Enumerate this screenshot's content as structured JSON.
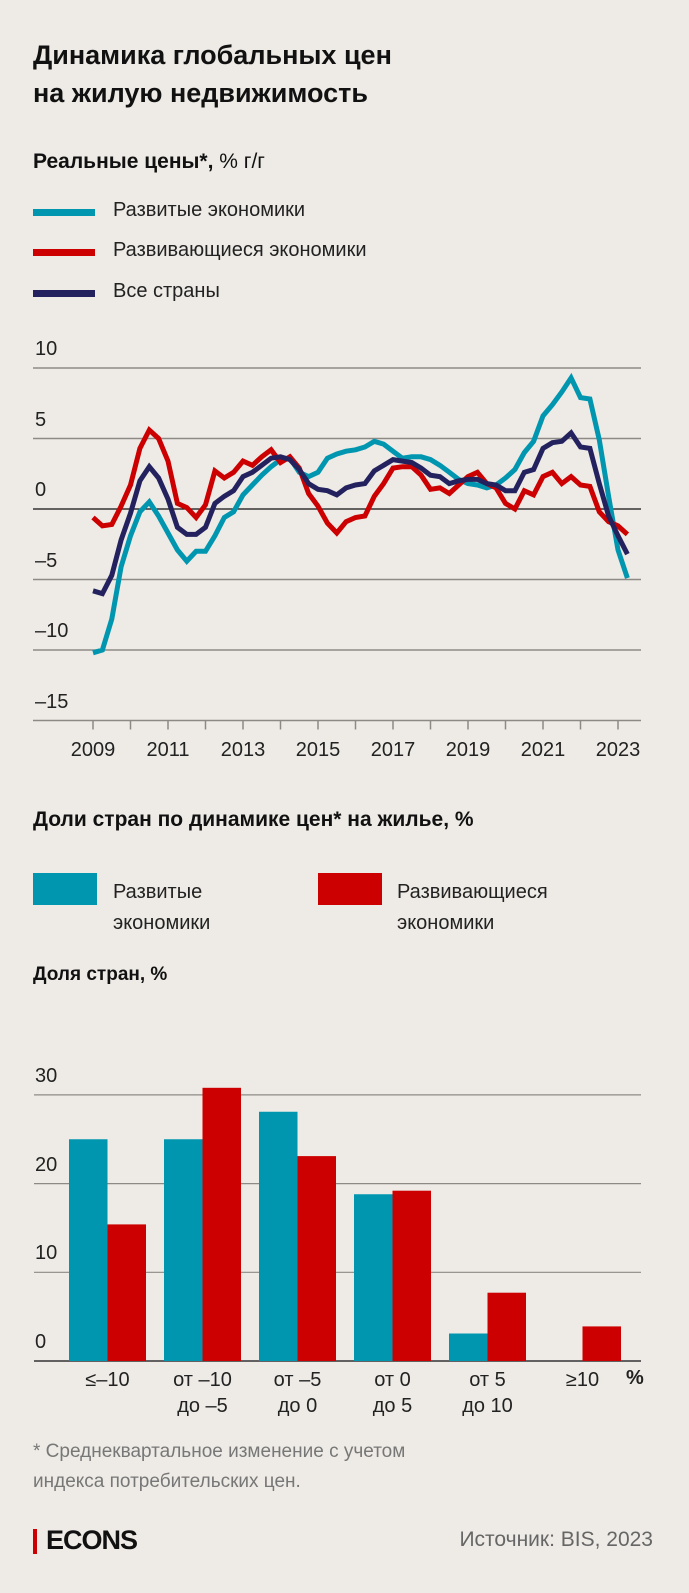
{
  "title_line1": "Динамика глобальных цен",
  "title_line2": "на жилую недвижимость",
  "colors": {
    "developed": "#0096b0",
    "emerging": "#cc0000",
    "all": "#24225e",
    "background": "#eeebe6"
  },
  "chart_data": [
    {
      "type": "line",
      "title": "Реальные цены*,",
      "title_unit": "% г/г",
      "ylim": [
        -15,
        10
      ],
      "yticks": [
        10,
        5,
        0,
        -5,
        -10,
        -15
      ],
      "ytick_labels": [
        "10",
        "5",
        "0",
        "–5",
        "–10",
        "–15"
      ],
      "xtick_labels": [
        "2009",
        "2011",
        "2013",
        "2015",
        "2017",
        "2019",
        "2021",
        "2023"
      ],
      "xlim": [
        "2009Q1",
        "2023Q2"
      ],
      "legend_position": "top-left",
      "grid": true,
      "x": [
        "2009Q1",
        "2009Q2",
        "2009Q3",
        "2009Q4",
        "2010Q1",
        "2010Q2",
        "2010Q3",
        "2010Q4",
        "2011Q1",
        "2011Q2",
        "2011Q3",
        "2011Q4",
        "2012Q1",
        "2012Q2",
        "2012Q3",
        "2012Q4",
        "2013Q1",
        "2013Q2",
        "2013Q3",
        "2013Q4",
        "2014Q1",
        "2014Q2",
        "2014Q3",
        "2014Q4",
        "2015Q1",
        "2015Q2",
        "2015Q3",
        "2015Q4",
        "2016Q1",
        "2016Q2",
        "2016Q3",
        "2016Q4",
        "2017Q1",
        "2017Q2",
        "2017Q3",
        "2017Q4",
        "2018Q1",
        "2018Q2",
        "2018Q3",
        "2018Q4",
        "2019Q1",
        "2019Q2",
        "2019Q3",
        "2019Q4",
        "2020Q1",
        "2020Q2",
        "2020Q3",
        "2020Q4",
        "2021Q1",
        "2021Q2",
        "2021Q3",
        "2021Q4",
        "2022Q1",
        "2022Q2",
        "2022Q3",
        "2022Q4",
        "2023Q1",
        "2023Q2"
      ],
      "series": [
        {
          "name": "Развитые экономики",
          "color": "#0096b0",
          "values": [
            -10.2,
            -10,
            -7.8,
            -4.1,
            -1.9,
            -0.2,
            0.5,
            -0.5,
            -1.7,
            -2.9,
            -3.7,
            -3,
            -3,
            -1.9,
            -0.6,
            -0.2,
            1.0,
            1.7,
            2.4,
            3.0,
            3.5,
            3.6,
            2.6,
            2.3,
            2.6,
            3.6,
            3.9,
            4.1,
            4.2,
            4.4,
            4.8,
            4.6,
            4.1,
            3.6,
            3.7,
            3.7,
            3.5,
            3.1,
            2.6,
            2.1,
            1.8,
            1.7,
            1.5,
            1.7,
            2.2,
            2.8,
            4.0,
            4.8,
            6.6,
            7.4,
            8.3,
            9.3,
            7.9,
            7.8,
            4.9,
            0.9,
            -2.9,
            -4.9
          ]
        },
        {
          "name": "Развивающиеся экономики",
          "color": "#cc0000",
          "values": [
            -0.6,
            -1.2,
            -1.1,
            0.2,
            1.7,
            4.3,
            5.6,
            5.0,
            3.4,
            0.4,
            0.1,
            -0.6,
            0.3,
            2.7,
            2.2,
            2.6,
            3.4,
            3.1,
            3.7,
            4.2,
            3.3,
            3.7,
            2.9,
            1.1,
            0.2,
            -1.0,
            -1.7,
            -0.9,
            -0.6,
            -0.5,
            0.9,
            1.8,
            2.9,
            3.0,
            3.0,
            2.4,
            1.4,
            1.5,
            1.1,
            1.7,
            2.3,
            2.6,
            1.8,
            1.5,
            0.4,
            0.0,
            1.3,
            1.0,
            2.3,
            2.6,
            1.8,
            2.3,
            1.7,
            1.6,
            -0.2,
            -0.9,
            -1.2,
            -1.8
          ]
        },
        {
          "name": "Все страны",
          "color": "#24225e",
          "values": [
            -5.8,
            -6.0,
            -4.7,
            -2.2,
            -0.3,
            2.0,
            3.0,
            2.2,
            0.7,
            -1.3,
            -1.8,
            -1.8,
            -1.3,
            0.4,
            0.9,
            1.3,
            2.3,
            2.6,
            3.1,
            3.6,
            3.7,
            3.5,
            2.8,
            1.8,
            1.4,
            1.3,
            1.0,
            1.5,
            1.7,
            1.8,
            2.7,
            3.1,
            3.5,
            3.4,
            3.3,
            2.9,
            2.4,
            2.3,
            1.8,
            2.0,
            2.1,
            2.1,
            1.8,
            1.7,
            1.3,
            1.3,
            2.6,
            2.8,
            4.3,
            4.7,
            4.8,
            5.4,
            4.4,
            4.3,
            1.8,
            -0.5,
            -1.9,
            -3.2
          ]
        }
      ]
    },
    {
      "type": "bar",
      "title": "Доли стран по динамике цен* на жилье, %",
      "ylabel": "Доля стран, %",
      "ylim": [
        0,
        30
      ],
      "yticks": [
        30,
        20,
        10,
        0
      ],
      "ytick_labels": [
        "30",
        "20",
        "10",
        "0"
      ],
      "x_unit": "%",
      "legend_position": "top",
      "grid": true,
      "categories": [
        [
          "≤–10"
        ],
        [
          "от –10",
          "до –5"
        ],
        [
          "от –5",
          "до 0"
        ],
        [
          "от 0",
          "до 5"
        ],
        [
          "от 5",
          "до 10"
        ],
        [
          "≥10"
        ]
      ],
      "series": [
        {
          "name_lines": [
            "Развитые",
            "экономики"
          ],
          "color": "#0096b0",
          "values": [
            25.0,
            25.0,
            28.1,
            18.8,
            3.1,
            0
          ]
        },
        {
          "name_lines": [
            "Развивающиеся",
            "экономики"
          ],
          "color": "#cc0000",
          "values": [
            15.4,
            30.8,
            23.1,
            19.2,
            7.7,
            3.9
          ]
        }
      ]
    }
  ],
  "footnote_line1": "* Среднеквартальное изменение с учетом",
  "footnote_line2": "индекса потребительских цен.",
  "logo": "ECONS",
  "source": "Источник: BIS, 2023"
}
